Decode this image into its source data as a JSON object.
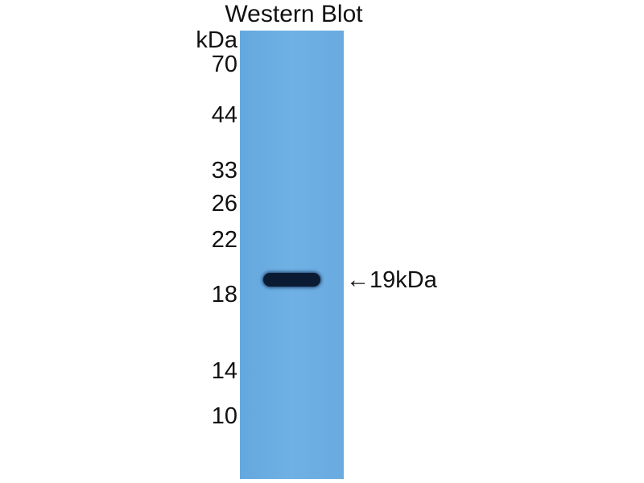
{
  "title": "Western Blot",
  "unit_label": "kDa",
  "markers": [
    "70",
    "44",
    "33",
    "26",
    "22",
    "18",
    "14",
    "10"
  ],
  "band_annotation": "←19kDa",
  "colors": {
    "membrane": "#6badE2",
    "band": "#0b1a33"
  }
}
